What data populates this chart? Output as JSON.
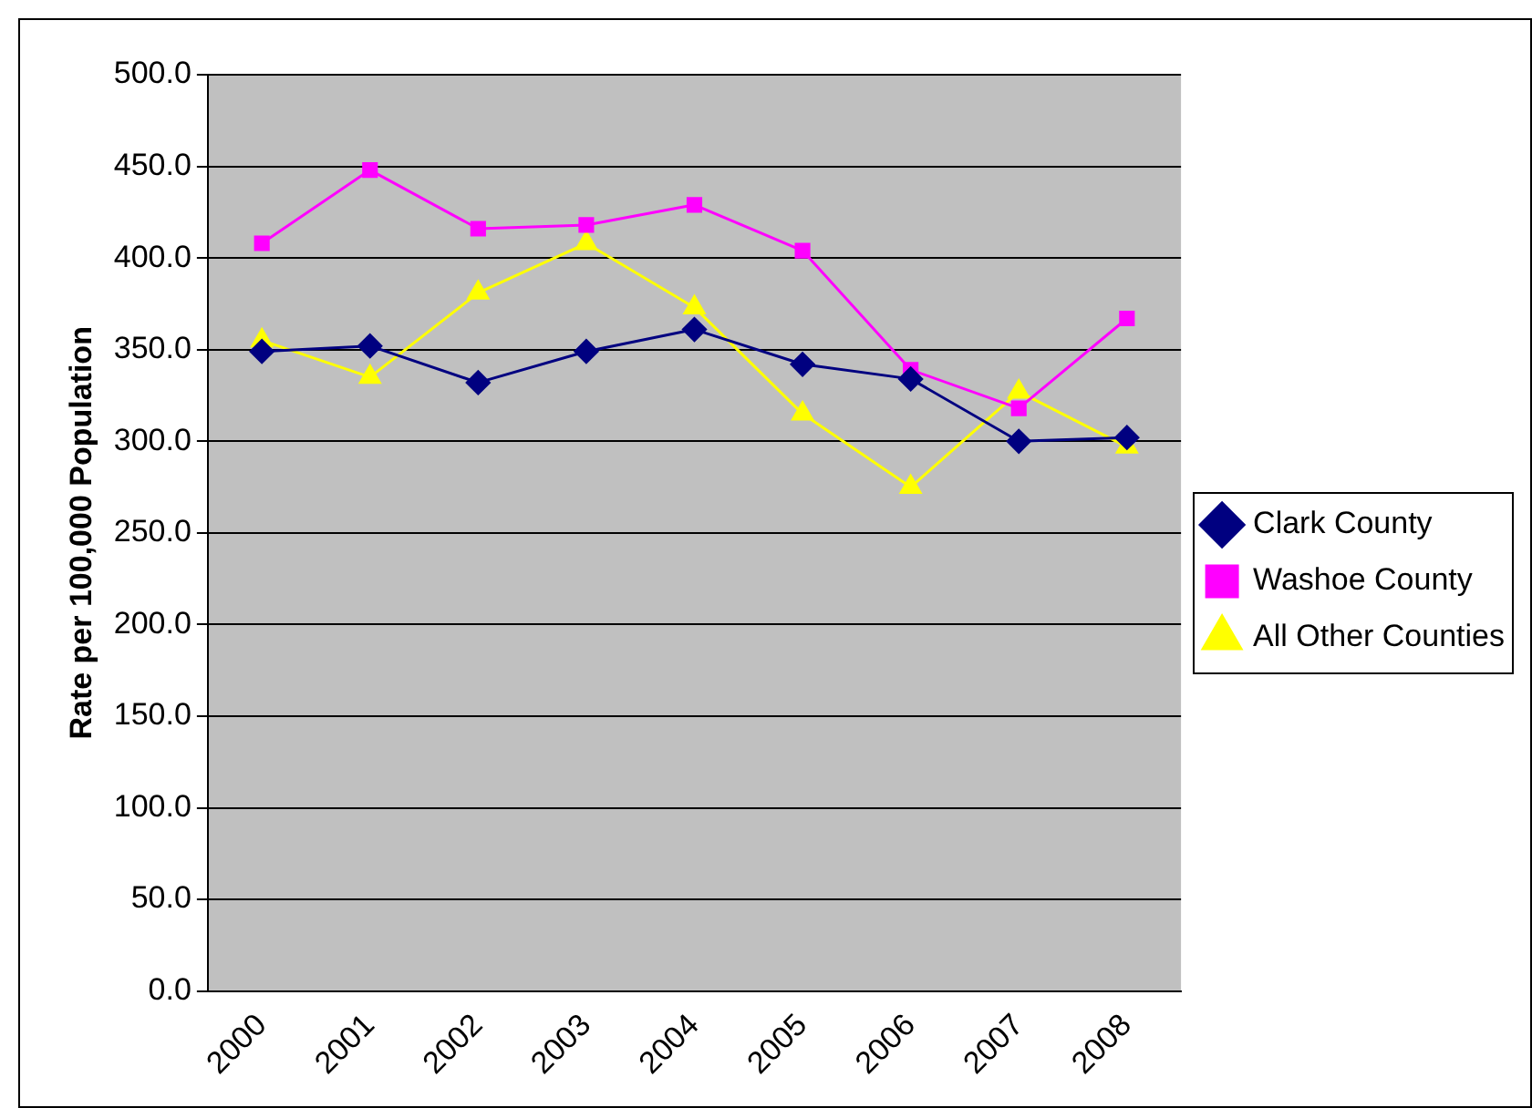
{
  "chart_data": {
    "type": "line",
    "ylabel": "Rate per 100,000 Population",
    "categories": [
      "2000",
      "2001",
      "2002",
      "2003",
      "2004",
      "2005",
      "2006",
      "2007",
      "2008"
    ],
    "series": [
      {
        "name": "Clark County",
        "color": "#000080",
        "marker": "diamond",
        "values": [
          349,
          352,
          332,
          349,
          361,
          342,
          334,
          300,
          302
        ]
      },
      {
        "name": "Washoe County",
        "color": "#ff00ff",
        "marker": "square",
        "values": [
          408,
          448,
          416,
          418,
          429,
          404,
          339,
          318,
          367
        ]
      },
      {
        "name": "All Other Counties",
        "color": "#ffff00",
        "marker": "triangle",
        "values": [
          355,
          335,
          381,
          408,
          373,
          315,
          275,
          327,
          297
        ]
      }
    ],
    "ylim": [
      0,
      500
    ],
    "yticks": [
      {
        "value": 0,
        "label": "0.0"
      },
      {
        "value": 50,
        "label": "50.0"
      },
      {
        "value": 100,
        "label": "100.0"
      },
      {
        "value": 150,
        "label": "150.0"
      },
      {
        "value": 200,
        "label": "200.0"
      },
      {
        "value": 250,
        "label": "250.0"
      },
      {
        "value": 300,
        "label": "300.0"
      },
      {
        "value": 350,
        "label": "350.0"
      },
      {
        "value": 400,
        "label": "400.0"
      },
      {
        "value": 450,
        "label": "450.0"
      },
      {
        "value": 500,
        "label": "500.0"
      }
    ],
    "grid": "y",
    "legend": "right",
    "line_style": "solid"
  }
}
